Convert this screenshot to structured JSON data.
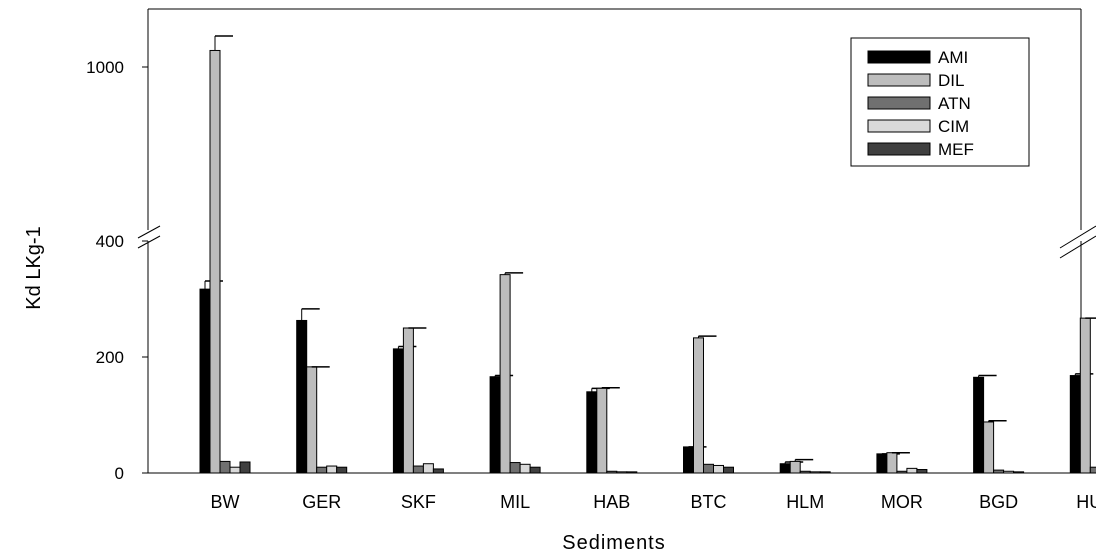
{
  "chart_data": {
    "type": "bar",
    "title": "",
    "xlabel": "Sediments",
    "ylabel": "Kd LKg-1",
    "categories": [
      "BW",
      "GER",
      "SKF",
      "MIL",
      "HAB",
      "BTC",
      "HLM",
      "MOR",
      "BGD",
      "HUS"
    ],
    "y_axis": {
      "broken": true,
      "lower_range": [
        0,
        400
      ],
      "lower_ticks": [
        "0",
        "200",
        "400"
      ],
      "lower_tick_values": [
        0,
        200,
        400
      ],
      "upper_range": [
        400,
        1200
      ],
      "upper_ticks": [
        "1000"
      ],
      "upper_tick_values": [
        1000
      ]
    },
    "grid": false,
    "legend_position": "top-right",
    "series": [
      {
        "name": "AMI",
        "color": "#000000",
        "values": [
          317,
          263,
          214,
          166,
          140,
          45,
          16,
          33,
          165,
          168
        ],
        "errors": [
          14,
          20,
          4,
          2,
          6,
          0,
          3,
          0,
          3,
          3
        ]
      },
      {
        "name": "DIL",
        "color": "#bdbdbd",
        "values": [
          1057,
          183,
          250,
          342,
          146,
          233,
          20,
          35,
          88,
          267
        ],
        "errors": [
          50,
          0,
          0,
          3,
          1,
          3,
          3,
          0,
          2,
          0
        ]
      },
      {
        "name": "ATN",
        "color": "#707070",
        "values": [
          20,
          10,
          12,
          18,
          3,
          15,
          3,
          3,
          5,
          10
        ],
        "errors": [
          0,
          0,
          0,
          0,
          0,
          0,
          0,
          0,
          0,
          0
        ]
      },
      {
        "name": "CIM",
        "color": "#d9d9d9",
        "values": [
          10,
          12,
          16,
          15,
          2,
          13,
          2,
          8,
          3,
          9
        ],
        "errors": [
          0,
          0,
          0,
          0,
          0,
          0,
          0,
          0,
          0,
          0
        ]
      },
      {
        "name": "MEF",
        "color": "#404040",
        "values": [
          19,
          10,
          7,
          10,
          2,
          10,
          2,
          6,
          2,
          2
        ],
        "errors": [
          0,
          0,
          0,
          0,
          0,
          0,
          0,
          0,
          0,
          0
        ]
      }
    ]
  }
}
